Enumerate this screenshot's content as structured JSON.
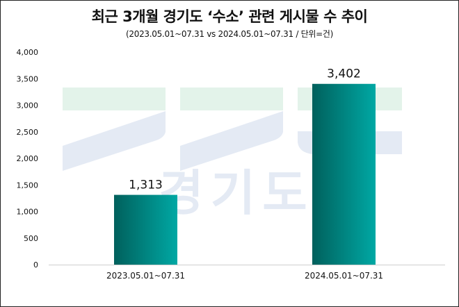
{
  "chart_data": {
    "type": "bar",
    "title": "최근 3개월 경기도 ‘수소’ 관련 게시물 수 추이",
    "subtitle": "(2023.05.01~07.31  vs 2024.05.01~07.31  / 단위=건)",
    "categories": [
      "2023.05.01~07.31",
      "2024.05.01~07.31"
    ],
    "values": [
      1313,
      3402
    ],
    "data_labels": [
      "1,313",
      "3,402"
    ],
    "ylim": [
      0,
      4000
    ],
    "yticks": [
      0,
      500,
      1000,
      1500,
      2000,
      2500,
      3000,
      3500,
      4000
    ],
    "ytick_labels": [
      "0",
      "500",
      "1,000",
      "1,500",
      "2,000",
      "2,500",
      "3,000",
      "3,500",
      "4,000"
    ],
    "grid": false,
    "bar_gradient": [
      "#00605c",
      "#00a8a4"
    ],
    "watermark_text": "경기도"
  }
}
